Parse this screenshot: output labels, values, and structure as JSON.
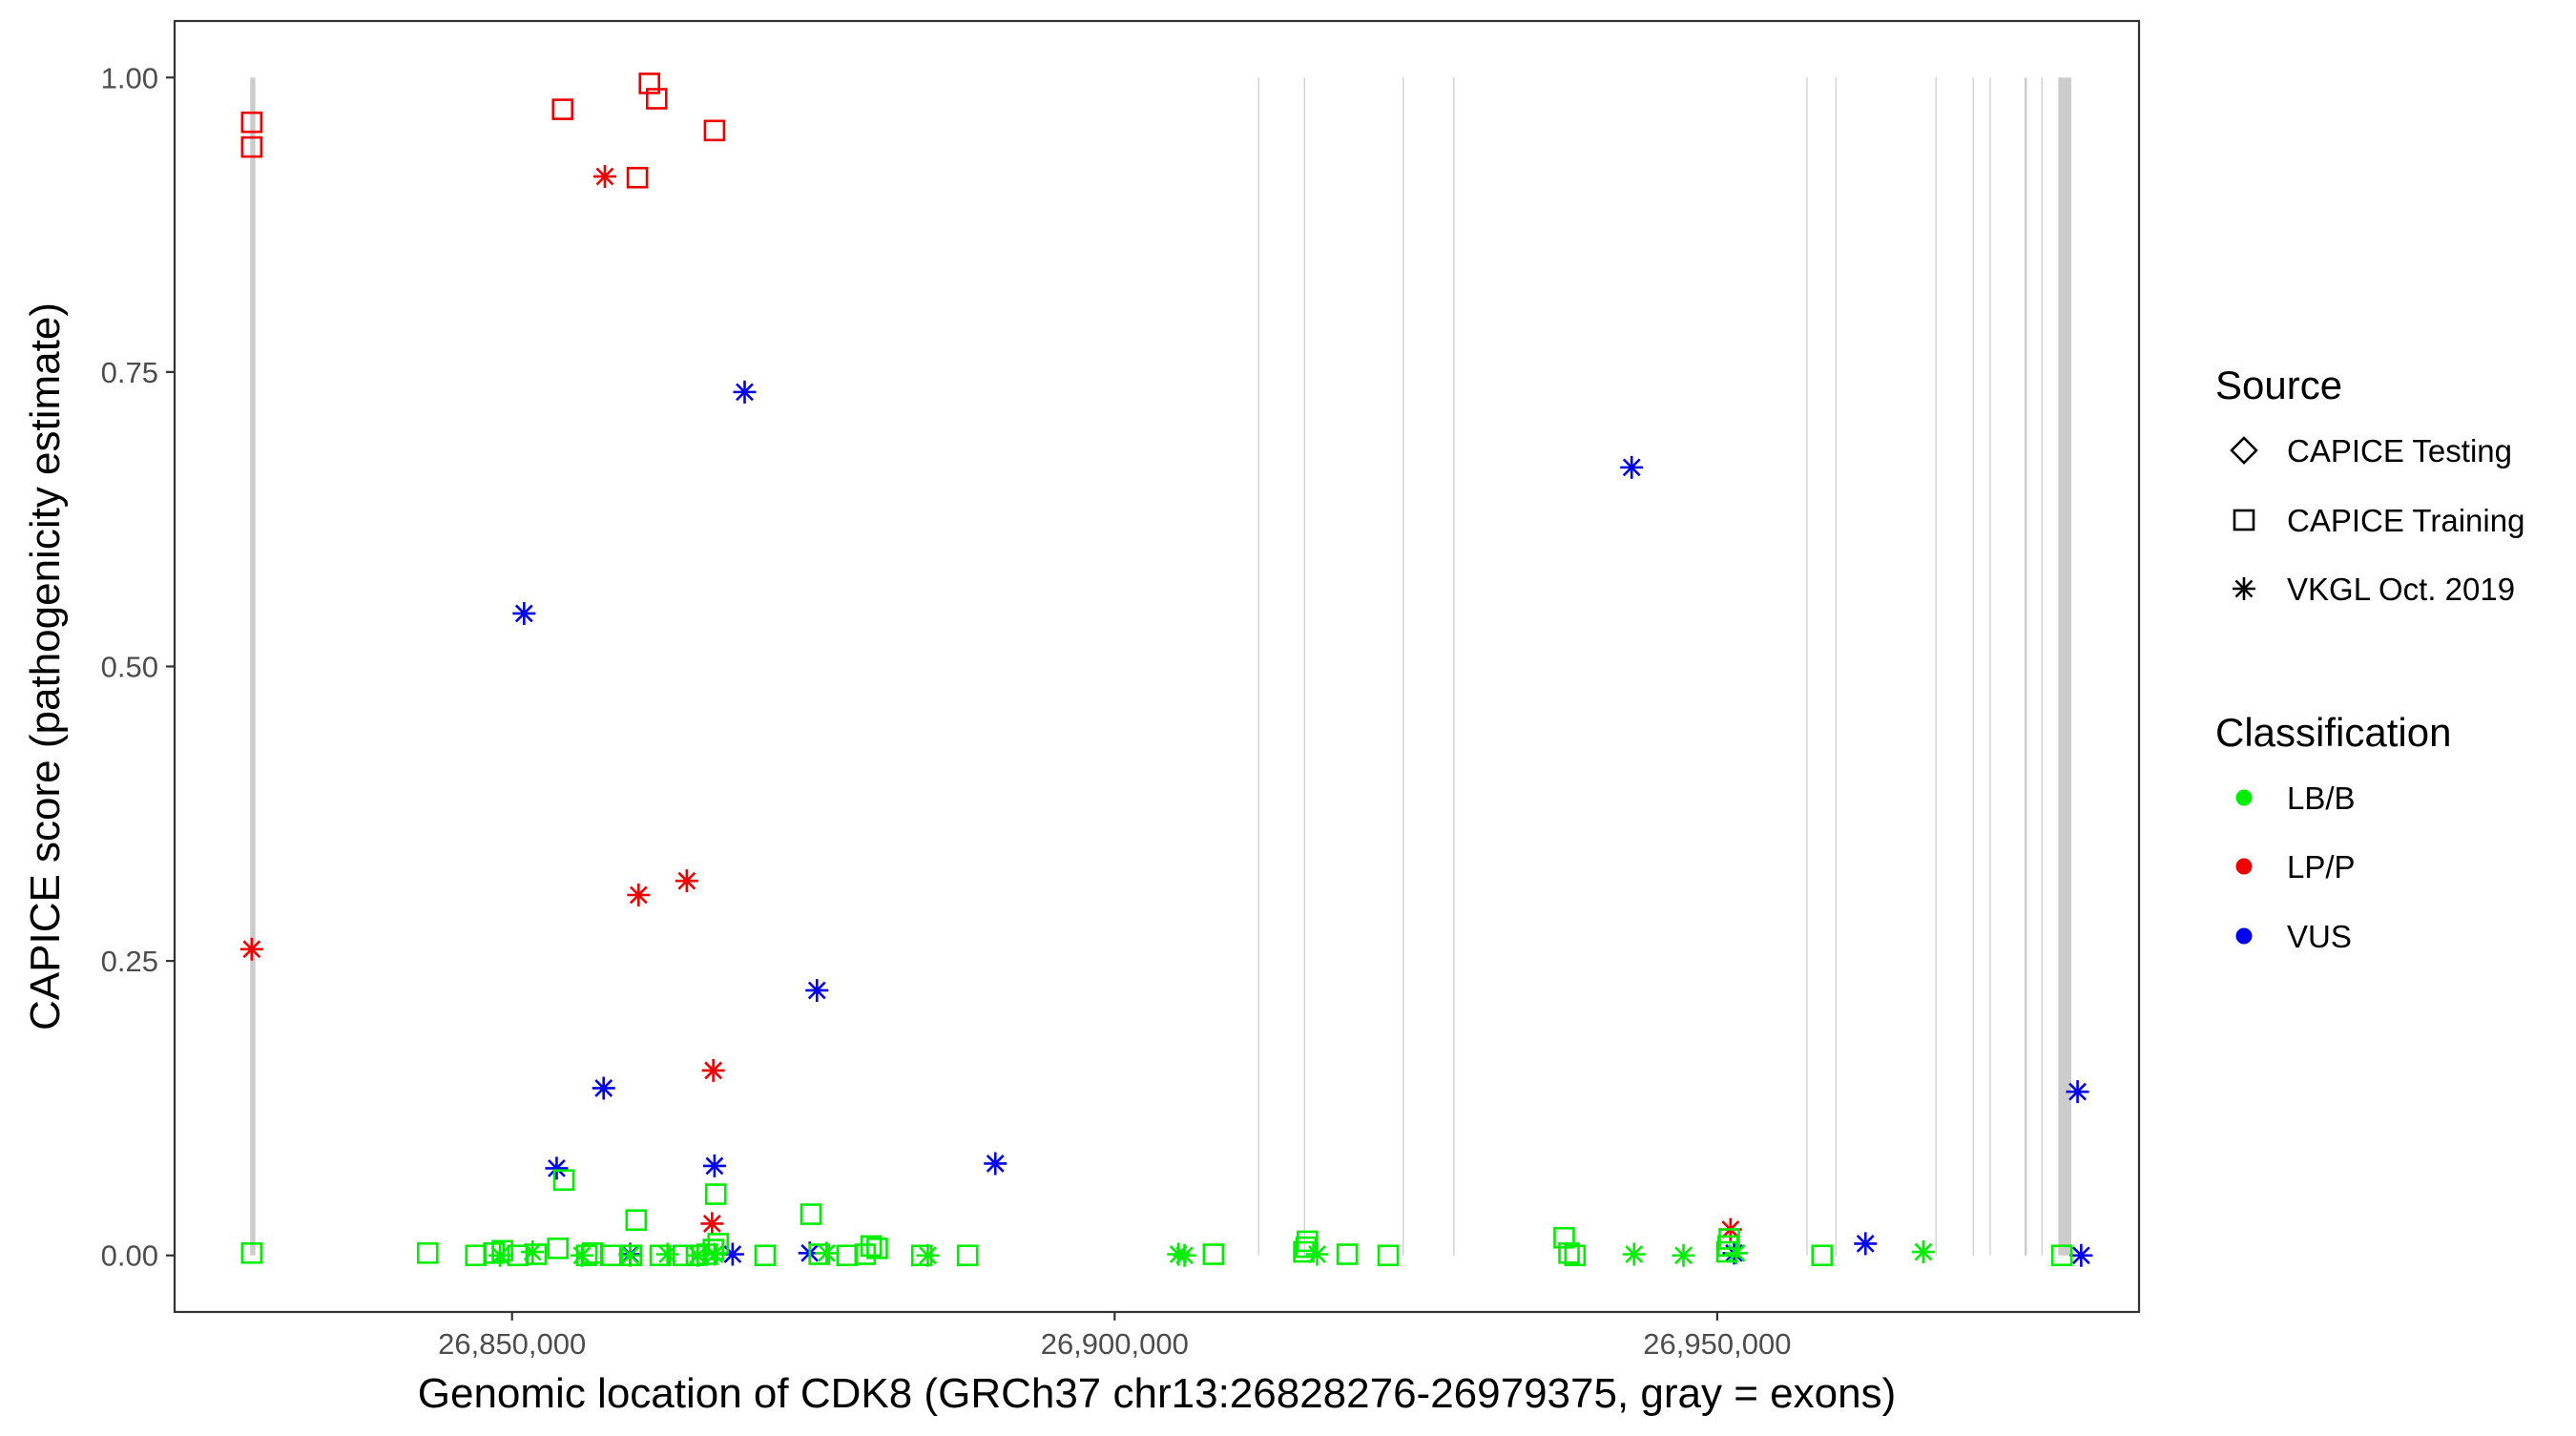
{
  "chart_data": {
    "type": "scatter",
    "title": "",
    "xlabel": "Genomic location of CDK8 (GRCh37 chr13:26828276-26979375, gray = exons)",
    "ylabel": "CAPICE score (pathogenicity estimate)",
    "xlim": [
      26822000,
      26985000
    ],
    "ylim": [
      -0.048,
      1.048
    ],
    "x_ticks": [
      26850000,
      26900000,
      26950000
    ],
    "x_tick_labels": [
      "26,850,000",
      "26,900,000",
      "26,950,000"
    ],
    "y_ticks": [
      0,
      0.25,
      0.5,
      0.75,
      1
    ],
    "y_tick_labels": [
      "0.00",
      "0.25",
      "0.50",
      "0.75",
      "1.00"
    ],
    "grid": false,
    "legend_position": "right",
    "exon_color": "#cccccc",
    "exons": [
      [
        26828276,
        26828700
      ],
      [
        26911900,
        26912000
      ],
      [
        26915700,
        26915800
      ],
      [
        26923900,
        26924000
      ],
      [
        26928100,
        26928200
      ],
      [
        26957400,
        26957480
      ],
      [
        26959800,
        26959880
      ],
      [
        26968100,
        26968200
      ],
      [
        26971200,
        26971280
      ],
      [
        26972600,
        26972680
      ],
      [
        26975500,
        26975700
      ],
      [
        26976900,
        26977000
      ],
      [
        26978300,
        26979375
      ]
    ],
    "legend": {
      "source": {
        "title": "Source",
        "entries": [
          {
            "shape": "diamond",
            "label": "CAPICE Testing"
          },
          {
            "shape": "square",
            "label": "CAPICE Training"
          },
          {
            "shape": "asterisk",
            "label": "VKGL Oct. 2019"
          }
        ]
      },
      "classification": {
        "title": "Classification",
        "entries": [
          {
            "color": "#00ee00",
            "label": "LB/B"
          },
          {
            "color": "#ee0000",
            "label": "LP/P"
          },
          {
            "color": "#0000ee",
            "label": "VUS"
          }
        ]
      }
    },
    "series": [
      {
        "source": "CAPICE Training",
        "classification": "LP/P",
        "shape": "square",
        "color": "#ee0000",
        "x": [
          26828400,
          26828400,
          26854200,
          26860400,
          26861400,
          26862000,
          26866800
        ],
        "y": [
          0.962,
          0.941,
          0.973,
          0.915,
          0.995,
          0.982,
          0.955
        ]
      },
      {
        "source": "VKGL Oct. 2019",
        "classification": "LP/P",
        "shape": "asterisk",
        "color": "#ee0000",
        "x": [
          26828400,
          26857700,
          26860500,
          26864500,
          26866700,
          26866600,
          26951100
        ],
        "y": [
          0.26,
          0.916,
          0.306,
          0.318,
          0.157,
          0.027,
          0.022
        ]
      },
      {
        "source": "VKGL Oct. 2019",
        "classification": "VUS",
        "shape": "asterisk",
        "color": "#0000ee",
        "x": [
          26851000,
          26869300,
          26875300,
          26857600,
          26853700,
          26866800,
          26890100,
          26942900,
          26979900,
          26962300,
          26859800,
          26868300,
          26874700,
          26951400,
          26980200
        ],
        "y": [
          0.545,
          0.733,
          0.225,
          0.142,
          0.074,
          0.076,
          0.078,
          0.669,
          0.139,
          0.01,
          0.001,
          0.001,
          0.002,
          0.002,
          0.0
        ]
      },
      {
        "source": "CAPICE Training",
        "classification": "LB/B",
        "shape": "square",
        "color": "#00ee00",
        "x": [
          26828400,
          26843000,
          26847000,
          26848500,
          26849200,
          26850500,
          26852000,
          26853800,
          26854300,
          26856200,
          26856700,
          26858200,
          26859900,
          26860300,
          26862300,
          26864200,
          26865300,
          26866200,
          26866700,
          26866900,
          26867100,
          26871000,
          26874800,
          26875500,
          26877800,
          26879300,
          26879800,
          26880300,
          26884000,
          26887800,
          26908200,
          26915700,
          26915900,
          26916000,
          26919300,
          26922700,
          26937300,
          26937700,
          26938200,
          26950800,
          26950900,
          26951000,
          26958700,
          26978600
        ],
        "y": [
          0.002,
          0.002,
          0.0,
          0.002,
          0.004,
          0.0,
          0.001,
          0.006,
          0.064,
          0.0,
          0.002,
          0.0,
          0.0,
          0.03,
          0.0,
          0.0,
          0.0,
          0.001,
          0.005,
          0.052,
          0.01,
          0.0,
          0.035,
          0.001,
          0.0,
          0.001,
          0.008,
          0.006,
          0.0,
          0.0,
          0.001,
          0.003,
          0.007,
          0.012,
          0.001,
          0.0,
          0.015,
          0.002,
          0.0,
          0.003,
          0.008,
          0.014,
          0.0,
          0.0
        ]
      },
      {
        "source": "VKGL Oct. 2019",
        "classification": "LB/B",
        "shape": "asterisk",
        "color": "#00ee00",
        "x": [
          26849000,
          26851700,
          26855800,
          26859800,
          26862900,
          26865400,
          26866800,
          26876100,
          26884500,
          26905300,
          26905800,
          26916800,
          26943100,
          26947200,
          26951600,
          26967100
        ],
        "y": [
          0.0,
          0.003,
          0.0,
          0.0,
          0.001,
          0.0,
          0.001,
          0.002,
          0.0,
          0.001,
          0.0,
          0.001,
          0.001,
          0.0,
          0.002,
          0.003
        ]
      }
    ]
  }
}
